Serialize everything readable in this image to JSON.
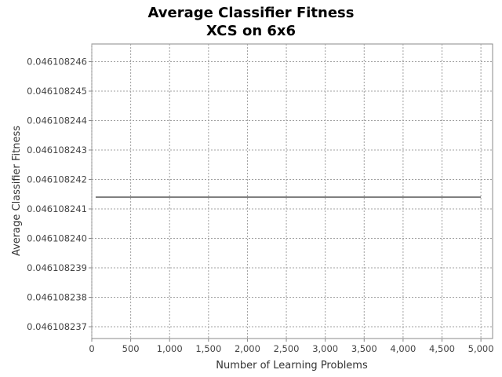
{
  "chart_data": {
    "type": "line",
    "title": "Average Classifier Fitness",
    "subtitle": "XCS on 6x6",
    "xlabel": "Number of Learning Problems",
    "ylabel": "Average Classifier Fitness",
    "xlim": [
      0,
      5150
    ],
    "ylim": [
      0.0461082366,
      0.0461082466
    ],
    "xticks": [
      0,
      500,
      1000,
      1500,
      2000,
      2500,
      3000,
      3500,
      4000,
      4500,
      5000
    ],
    "xtick_labels": [
      "0",
      "500",
      "1,000",
      "1,500",
      "2,000",
      "2,500",
      "3,000",
      "3,500",
      "4,000",
      "4,500",
      "5,000"
    ],
    "yticks": [
      0.046108237,
      0.046108238,
      0.046108239,
      0.04610824,
      0.046108241,
      0.046108242,
      0.046108243,
      0.046108244,
      0.046108245,
      0.046108246
    ],
    "ytick_labels": [
      "0.046108237",
      "0.046108238",
      "0.046108239",
      "0.046108240",
      "0.046108241",
      "0.046108242",
      "0.046108243",
      "0.046108244",
      "0.046108245",
      "0.046108246"
    ],
    "grid": true,
    "series": [
      {
        "color": "#000000",
        "x": [
          50,
          5000
        ],
        "y": [
          0.0461082414,
          0.0461082414
        ]
      }
    ]
  }
}
